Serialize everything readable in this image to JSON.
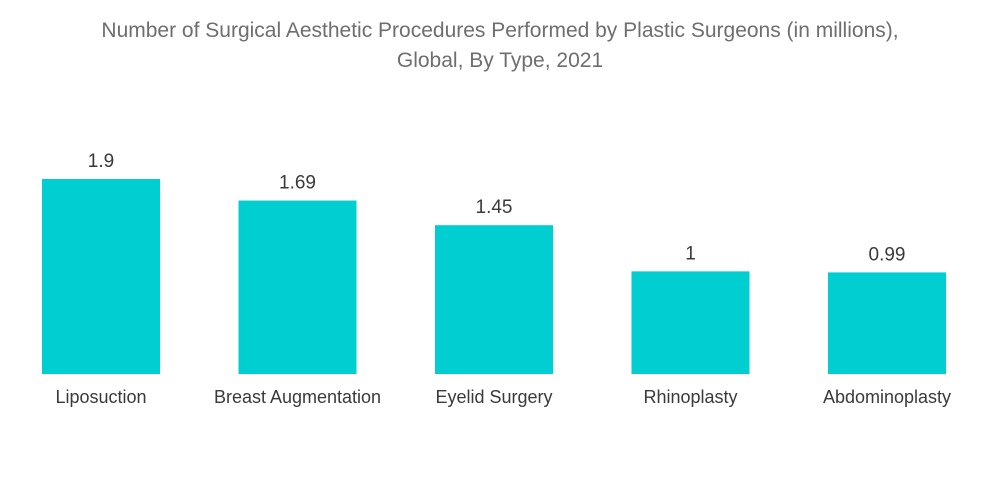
{
  "chart_data": {
    "type": "bar",
    "title_lines": [
      "Number of Surgical Aesthetic Procedures Performed by Plastic Surgeons (in millions),",
      "Global, By Type, 2021"
    ],
    "categories": [
      "Liposuction",
      "Breast Augmentation",
      "Eyelid Surgery",
      "Rhinoplasty",
      "Abdominoplasty"
    ],
    "values": [
      1.9,
      1.69,
      1.45,
      1,
      0.99
    ],
    "value_labels": [
      "1.9",
      "1.69",
      "1.45",
      "1",
      "0.99"
    ],
    "xlabel": "",
    "ylabel": "",
    "ylim": [
      0,
      1.9
    ],
    "bar_color": "#00CED1",
    "grid": false,
    "legend": "none"
  }
}
